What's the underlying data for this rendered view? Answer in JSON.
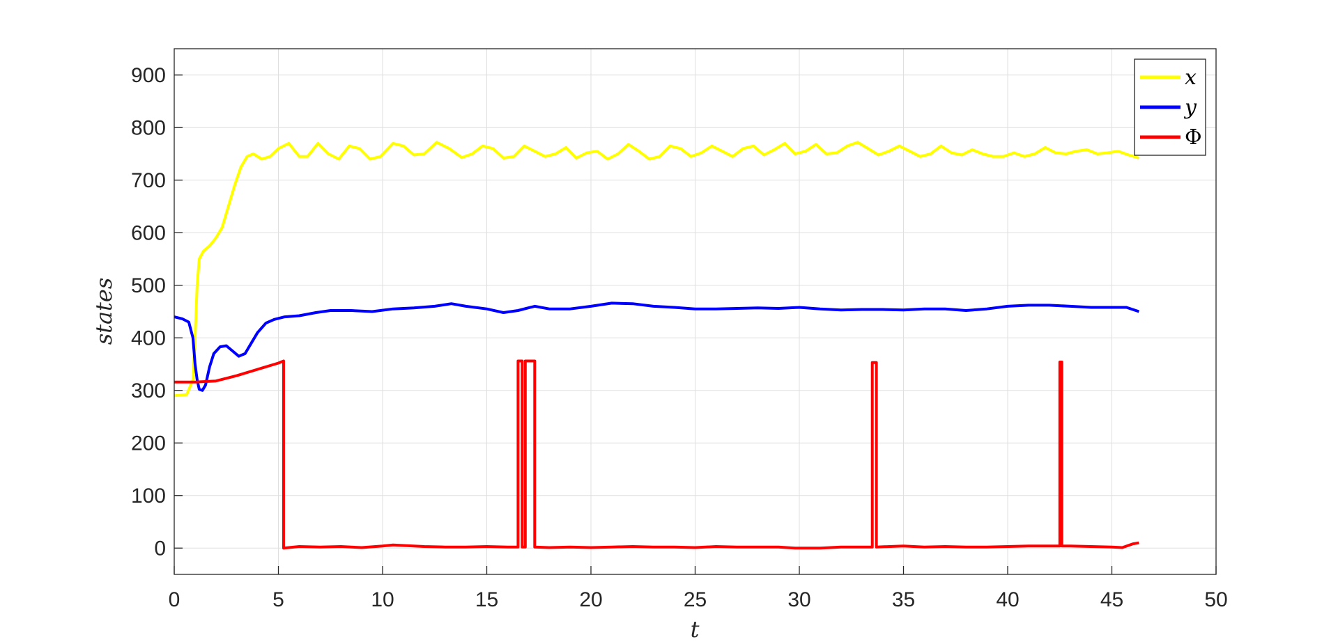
{
  "chart_data": {
    "type": "line",
    "title": "",
    "xlabel": "t",
    "ylabel": "states",
    "xlim": [
      0,
      50
    ],
    "ylim": [
      -50,
      950
    ],
    "xticks": [
      0,
      5,
      10,
      15,
      20,
      25,
      30,
      35,
      40,
      45,
      50
    ],
    "xtick_labels": [
      "0",
      "5",
      "10",
      "15",
      "20",
      "25",
      "30",
      "35",
      "40",
      "45",
      "50"
    ],
    "yticks": [
      0,
      100,
      200,
      300,
      400,
      500,
      600,
      700,
      800,
      900
    ],
    "ytick_labels": [
      "0",
      "100",
      "200",
      "300",
      "400",
      "500",
      "600",
      "700",
      "800",
      "900"
    ],
    "grid": true,
    "legend_position": "top-right",
    "series": [
      {
        "name": "x",
        "color": "#FFFF00",
        "points": [
          [
            0,
            290
          ],
          [
            0.6,
            292
          ],
          [
            0.9,
            320
          ],
          [
            1.0,
            400
          ],
          [
            1.1,
            500
          ],
          [
            1.2,
            550
          ],
          [
            1.4,
            565
          ],
          [
            1.7,
            575
          ],
          [
            2.0,
            590
          ],
          [
            2.3,
            610
          ],
          [
            2.6,
            650
          ],
          [
            2.9,
            690
          ],
          [
            3.2,
            725
          ],
          [
            3.5,
            745
          ],
          [
            3.8,
            750
          ],
          [
            4.2,
            740
          ],
          [
            4.6,
            745
          ],
          [
            5.0,
            760
          ],
          [
            5.5,
            770
          ],
          [
            6.0,
            745
          ],
          [
            6.4,
            745
          ],
          [
            6.9,
            770
          ],
          [
            7.4,
            750
          ],
          [
            7.9,
            740
          ],
          [
            8.4,
            765
          ],
          [
            8.9,
            760
          ],
          [
            9.4,
            740
          ],
          [
            9.9,
            745
          ],
          [
            10.5,
            770
          ],
          [
            11.0,
            765
          ],
          [
            11.5,
            748
          ],
          [
            12.0,
            750
          ],
          [
            12.6,
            772
          ],
          [
            13.2,
            760
          ],
          [
            13.8,
            743
          ],
          [
            14.3,
            750
          ],
          [
            14.8,
            765
          ],
          [
            15.3,
            760
          ],
          [
            15.8,
            742
          ],
          [
            16.3,
            745
          ],
          [
            16.8,
            765
          ],
          [
            17.3,
            755
          ],
          [
            17.8,
            745
          ],
          [
            18.3,
            750
          ],
          [
            18.8,
            762
          ],
          [
            19.3,
            742
          ],
          [
            19.8,
            752
          ],
          [
            20.3,
            755
          ],
          [
            20.8,
            740
          ],
          [
            21.3,
            750
          ],
          [
            21.8,
            768
          ],
          [
            22.3,
            755
          ],
          [
            22.8,
            740
          ],
          [
            23.3,
            745
          ],
          [
            23.8,
            765
          ],
          [
            24.3,
            760
          ],
          [
            24.8,
            745
          ],
          [
            25.3,
            752
          ],
          [
            25.8,
            765
          ],
          [
            26.3,
            755
          ],
          [
            26.8,
            745
          ],
          [
            27.3,
            760
          ],
          [
            27.8,
            765
          ],
          [
            28.3,
            748
          ],
          [
            28.8,
            758
          ],
          [
            29.3,
            770
          ],
          [
            29.8,
            750
          ],
          [
            30.3,
            755
          ],
          [
            30.8,
            768
          ],
          [
            31.3,
            750
          ],
          [
            31.8,
            752
          ],
          [
            32.3,
            765
          ],
          [
            32.8,
            772
          ],
          [
            33.3,
            760
          ],
          [
            33.8,
            748
          ],
          [
            34.3,
            755
          ],
          [
            34.8,
            765
          ],
          [
            35.3,
            755
          ],
          [
            35.8,
            745
          ],
          [
            36.3,
            750
          ],
          [
            36.8,
            765
          ],
          [
            37.3,
            752
          ],
          [
            37.8,
            748
          ],
          [
            38.3,
            758
          ],
          [
            38.8,
            750
          ],
          [
            39.3,
            745
          ],
          [
            39.8,
            745
          ],
          [
            40.3,
            752
          ],
          [
            40.8,
            745
          ],
          [
            41.3,
            750
          ],
          [
            41.8,
            762
          ],
          [
            42.3,
            752
          ],
          [
            42.8,
            750
          ],
          [
            43.3,
            755
          ],
          [
            43.8,
            758
          ],
          [
            44.3,
            750
          ],
          [
            44.8,
            752
          ],
          [
            45.3,
            755
          ],
          [
            45.8,
            748
          ],
          [
            46.3,
            742
          ]
        ]
      },
      {
        "name": "y",
        "color": "#0000FF",
        "points": [
          [
            0,
            440
          ],
          [
            0.4,
            436
          ],
          [
            0.7,
            430
          ],
          [
            0.9,
            400
          ],
          [
            1.0,
            350
          ],
          [
            1.1,
            320
          ],
          [
            1.2,
            302
          ],
          [
            1.35,
            300
          ],
          [
            1.5,
            310
          ],
          [
            1.7,
            345
          ],
          [
            1.9,
            370
          ],
          [
            2.2,
            383
          ],
          [
            2.5,
            385
          ],
          [
            2.8,
            375
          ],
          [
            3.1,
            365
          ],
          [
            3.4,
            370
          ],
          [
            3.7,
            390
          ],
          [
            4.0,
            410
          ],
          [
            4.4,
            428
          ],
          [
            4.8,
            435
          ],
          [
            5.3,
            440
          ],
          [
            6.0,
            442
          ],
          [
            6.8,
            448
          ],
          [
            7.5,
            452
          ],
          [
            8.5,
            452
          ],
          [
            9.5,
            450
          ],
          [
            10.5,
            455
          ],
          [
            11.5,
            457
          ],
          [
            12.5,
            460
          ],
          [
            13.3,
            465
          ],
          [
            14.0,
            460
          ],
          [
            15.0,
            455
          ],
          [
            15.8,
            448
          ],
          [
            16.5,
            452
          ],
          [
            17.3,
            460
          ],
          [
            18.0,
            455
          ],
          [
            19.0,
            455
          ],
          [
            20.0,
            460
          ],
          [
            21.0,
            466
          ],
          [
            22.0,
            465
          ],
          [
            23.0,
            460
          ],
          [
            24.0,
            458
          ],
          [
            25.0,
            455
          ],
          [
            26.0,
            455
          ],
          [
            27.0,
            456
          ],
          [
            28.0,
            457
          ],
          [
            29.0,
            456
          ],
          [
            30.0,
            458
          ],
          [
            31.0,
            455
          ],
          [
            32.0,
            453
          ],
          [
            33.0,
            454
          ],
          [
            34.0,
            454
          ],
          [
            35.0,
            453
          ],
          [
            36.0,
            455
          ],
          [
            37.0,
            455
          ],
          [
            38.0,
            452
          ],
          [
            39.0,
            455
          ],
          [
            40.0,
            460
          ],
          [
            41.0,
            462
          ],
          [
            42.0,
            462
          ],
          [
            43.0,
            460
          ],
          [
            44.0,
            458
          ],
          [
            45.0,
            458
          ],
          [
            45.7,
            458
          ],
          [
            46.3,
            450
          ]
        ]
      },
      {
        "name": "Φ",
        "color": "#FF0000",
        "points": [
          [
            0,
            316
          ],
          [
            1.0,
            316
          ],
          [
            2.0,
            318
          ],
          [
            3.0,
            328
          ],
          [
            4.0,
            340
          ],
          [
            5.0,
            352
          ],
          [
            5.25,
            356
          ],
          [
            5.25,
            0
          ],
          [
            6,
            3
          ],
          [
            7,
            2
          ],
          [
            8,
            3
          ],
          [
            9,
            1
          ],
          [
            10,
            4
          ],
          [
            10.5,
            6
          ],
          [
            11,
            5
          ],
          [
            12,
            3
          ],
          [
            13,
            2
          ],
          [
            14,
            2
          ],
          [
            15,
            3
          ],
          [
            16,
            2
          ],
          [
            16.5,
            2
          ],
          [
            16.5,
            356
          ],
          [
            16.7,
            356
          ],
          [
            16.7,
            2
          ],
          [
            16.85,
            2
          ],
          [
            16.85,
            356
          ],
          [
            17.3,
            356
          ],
          [
            17.3,
            2
          ],
          [
            18,
            1
          ],
          [
            19,
            2
          ],
          [
            20,
            1
          ],
          [
            21,
            2
          ],
          [
            22,
            3
          ],
          [
            23,
            2
          ],
          [
            24,
            2
          ],
          [
            25,
            1
          ],
          [
            26,
            3
          ],
          [
            27,
            2
          ],
          [
            28,
            2
          ],
          [
            29,
            2
          ],
          [
            29.8,
            0
          ],
          [
            31,
            0
          ],
          [
            32,
            2
          ],
          [
            33,
            2
          ],
          [
            33.5,
            2
          ],
          [
            33.5,
            353
          ],
          [
            33.7,
            353
          ],
          [
            33.7,
            2
          ],
          [
            35,
            4
          ],
          [
            36,
            2
          ],
          [
            37,
            3
          ],
          [
            38,
            2
          ],
          [
            39,
            2
          ],
          [
            40,
            3
          ],
          [
            41,
            4
          ],
          [
            42,
            4
          ],
          [
            42.5,
            4
          ],
          [
            42.5,
            354
          ],
          [
            42.6,
            354
          ],
          [
            42.6,
            4
          ],
          [
            43,
            4
          ],
          [
            44,
            3
          ],
          [
            45,
            2
          ],
          [
            45.5,
            1
          ],
          [
            46,
            8
          ],
          [
            46.3,
            10
          ]
        ]
      }
    ]
  }
}
